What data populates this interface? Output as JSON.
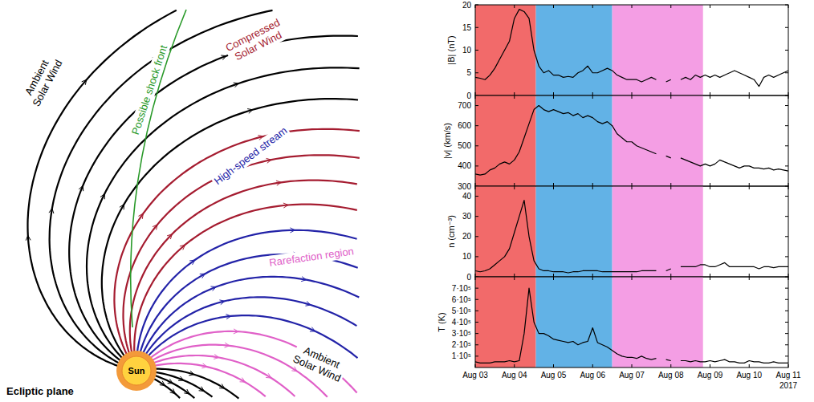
{
  "diagram": {
    "title": "Ecliptic plane",
    "sun": "Sun",
    "labels": [
      {
        "text": "Ambient Solar Wind",
        "color": "#000000"
      },
      {
        "text": "Possible shock front",
        "color": "#2a9a2a"
      },
      {
        "text": "Compressed Solar Wind",
        "color": "#a51c30"
      },
      {
        "text": "High-speed stream",
        "color": "#2323a8"
      },
      {
        "text": "Rarefaction region",
        "color": "#e060c8"
      },
      {
        "text": "Ambient Solar Wind",
        "color": "#000000"
      }
    ]
  },
  "chart_data": [
    {
      "type": "line",
      "ylabel": "|B| (nT)",
      "color": "#000000",
      "tick_labels": "y",
      "grid": false,
      "xlim": [
        3,
        11
      ],
      "xticks": [
        3,
        4,
        5,
        6,
        7,
        8,
        9,
        10,
        11
      ],
      "ylim": [
        0,
        20
      ],
      "yticks": [
        0,
        5,
        10,
        15,
        20
      ],
      "regions": [
        {
          "start": 3,
          "end": 4.55,
          "color": "#f26a6a"
        },
        {
          "start": 4.55,
          "end": 6.5,
          "color": "#62b2e6"
        },
        {
          "start": 6.5,
          "end": 8.82,
          "color": "#f49ee4"
        }
      ],
      "x": [
        3,
        3.125,
        3.25,
        3.375,
        3.5,
        3.625,
        3.75,
        3.875,
        4,
        4.125,
        4.25,
        4.375,
        4.5,
        4.625,
        4.75,
        4.875,
        5,
        5.125,
        5.25,
        5.375,
        5.5,
        5.625,
        5.75,
        5.875,
        6,
        6.125,
        6.25,
        6.375,
        6.5,
        6.625,
        6.75,
        6.875,
        7,
        7.125,
        7.25,
        7.375,
        7.5,
        7.625,
        7.75,
        7.875,
        8,
        8.125,
        8.25,
        8.375,
        8.5,
        8.625,
        8.75,
        8.875,
        9,
        9.125,
        9.25,
        9.375,
        9.5,
        9.625,
        9.75,
        9.875,
        10,
        10.125,
        10.25,
        10.375,
        10.5,
        10.625,
        10.75,
        10.875,
        11
      ],
      "values": [
        4,
        3.8,
        3.5,
        4.5,
        6,
        8,
        10,
        12,
        17,
        19,
        18.5,
        17,
        10,
        6.5,
        5,
        5.5,
        4.5,
        4.5,
        4,
        4.2,
        4,
        5,
        5.5,
        6.5,
        5,
        5,
        5.5,
        6,
        5.5,
        4.5,
        4,
        3.5,
        3.5,
        3.5,
        3,
        3.5,
        4,
        3.5,
        null,
        3,
        3.5,
        null,
        3.5,
        4,
        3.5,
        4.5,
        4,
        4.5,
        4,
        4.5,
        4,
        4.5,
        5,
        5.5,
        5,
        4.5,
        4,
        3.5,
        2,
        4,
        4.5,
        4,
        4.5,
        5,
        5.5
      ]
    },
    {
      "type": "line",
      "ylabel": "|v| (km/s)",
      "color": "#000000",
      "tick_labels": "y",
      "grid": false,
      "xlim": [
        3,
        11
      ],
      "xticks": [
        3,
        4,
        5,
        6,
        7,
        8,
        9,
        10,
        11
      ],
      "ylim": [
        300,
        750
      ],
      "yticks": [
        300,
        400,
        500,
        600,
        700
      ],
      "regions": [
        {
          "start": 3,
          "end": 4.55,
          "color": "#f26a6a"
        },
        {
          "start": 4.55,
          "end": 6.5,
          "color": "#62b2e6"
        },
        {
          "start": 6.5,
          "end": 8.82,
          "color": "#f49ee4"
        }
      ],
      "x": [
        3,
        3.125,
        3.25,
        3.375,
        3.5,
        3.625,
        3.75,
        3.875,
        4,
        4.125,
        4.25,
        4.375,
        4.5,
        4.625,
        4.75,
        4.875,
        5,
        5.125,
        5.25,
        5.375,
        5.5,
        5.625,
        5.75,
        5.875,
        6,
        6.125,
        6.25,
        6.375,
        6.5,
        6.625,
        6.75,
        6.875,
        7,
        7.125,
        7.25,
        7.375,
        7.5,
        7.625,
        7.75,
        7.875,
        8,
        8.125,
        8.25,
        8.375,
        8.5,
        8.625,
        8.75,
        8.875,
        9,
        9.125,
        9.25,
        9.375,
        9.5,
        9.625,
        9.75,
        9.875,
        10,
        10.125,
        10.25,
        10.375,
        10.5,
        10.625,
        10.75,
        10.875,
        11
      ],
      "values": [
        360,
        355,
        360,
        380,
        390,
        410,
        420,
        410,
        430,
        470,
        540,
        610,
        680,
        700,
        680,
        670,
        680,
        670,
        660,
        665,
        650,
        660,
        640,
        650,
        640,
        620,
        610,
        620,
        600,
        560,
        540,
        520,
        520,
        500,
        490,
        480,
        470,
        460,
        null,
        450,
        440,
        null,
        440,
        430,
        420,
        410,
        400,
        410,
        400,
        410,
        430,
        420,
        410,
        400,
        390,
        400,
        400,
        390,
        390,
        385,
        390,
        380,
        385,
        380,
        375
      ]
    },
    {
      "type": "line",
      "ylabel": "n (cm⁻³)",
      "color": "#000000",
      "tick_labels": "y",
      "grid": false,
      "xlim": [
        3,
        11
      ],
      "xticks": [
        3,
        4,
        5,
        6,
        7,
        8,
        9,
        10,
        11
      ],
      "ylim": [
        0,
        45
      ],
      "yticks": [
        0,
        10,
        20,
        30,
        40
      ],
      "regions": [
        {
          "start": 3,
          "end": 4.55,
          "color": "#f26a6a"
        },
        {
          "start": 4.55,
          "end": 6.5,
          "color": "#62b2e6"
        },
        {
          "start": 6.5,
          "end": 8.82,
          "color": "#f49ee4"
        }
      ],
      "x": [
        3,
        3.125,
        3.25,
        3.375,
        3.5,
        3.625,
        3.75,
        3.875,
        4,
        4.125,
        4.25,
        4.375,
        4.5,
        4.625,
        4.75,
        4.875,
        5,
        5.125,
        5.25,
        5.375,
        5.5,
        5.625,
        5.75,
        5.875,
        6,
        6.125,
        6.25,
        6.375,
        6.5,
        6.625,
        6.75,
        6.875,
        7,
        7.125,
        7.25,
        7.375,
        7.5,
        7.625,
        7.75,
        7.875,
        8,
        8.125,
        8.25,
        8.375,
        8.5,
        8.625,
        8.75,
        8.875,
        9,
        9.125,
        9.25,
        9.375,
        9.5,
        9.625,
        9.75,
        9.875,
        10,
        10.125,
        10.25,
        10.375,
        10.5,
        10.625,
        10.75,
        10.875,
        11
      ],
      "values": [
        3,
        2.5,
        3,
        4,
        6,
        8,
        10,
        14,
        22,
        30,
        38,
        20,
        8,
        4,
        3,
        3,
        2.5,
        2.5,
        2.5,
        2,
        2.5,
        2.5,
        3,
        3,
        3,
        3,
        2.5,
        2.5,
        2.5,
        2.5,
        2.5,
        2.5,
        2.5,
        2.5,
        3,
        3,
        3,
        3,
        null,
        3,
        4,
        null,
        5,
        5,
        5,
        5,
        6,
        6,
        5,
        5,
        6,
        7,
        5,
        5,
        5,
        5,
        5,
        5,
        4,
        5,
        5,
        4.5,
        5,
        5,
        5
      ]
    },
    {
      "type": "line",
      "ylabel": "T (K)",
      "xlabel": "2017",
      "color": "#000000",
      "grid": false,
      "xlim": [
        3,
        11
      ],
      "xticks": [
        {
          "value": 3,
          "label": "Aug 03"
        },
        {
          "value": 4,
          "label": "Aug 04"
        },
        {
          "value": 5,
          "label": "Aug 05"
        },
        {
          "value": 6,
          "label": "Aug 06"
        },
        {
          "value": 7,
          "label": "Aug 07"
        },
        {
          "value": 8,
          "label": "Aug 08"
        },
        {
          "value": 9,
          "label": "Aug 09"
        },
        {
          "value": 10,
          "label": "Aug 10"
        },
        {
          "value": 11,
          "label": "Aug 11"
        }
      ],
      "ylim": [
        0,
        800000
      ],
      "yticks": [
        {
          "value": 100000,
          "label": "1·10⁵"
        },
        {
          "value": 200000,
          "label": "2·10⁵"
        },
        {
          "value": 300000,
          "label": "3·10⁵"
        },
        {
          "value": 400000,
          "label": "4·10⁵"
        },
        {
          "value": 500000,
          "label": "5·10⁵"
        },
        {
          "value": 600000,
          "label": "6·10⁵"
        },
        {
          "value": 700000,
          "label": "7·10⁵"
        }
      ],
      "regions": [
        {
          "start": 3,
          "end": 4.55,
          "color": "#f26a6a"
        },
        {
          "start": 4.55,
          "end": 6.5,
          "color": "#62b2e6"
        },
        {
          "start": 6.5,
          "end": 8.82,
          "color": "#f49ee4"
        }
      ],
      "x": [
        3,
        3.125,
        3.25,
        3.375,
        3.5,
        3.625,
        3.75,
        3.875,
        4,
        4.125,
        4.25,
        4.375,
        4.5,
        4.625,
        4.75,
        4.875,
        5,
        5.125,
        5.25,
        5.375,
        5.5,
        5.625,
        5.75,
        5.875,
        6,
        6.125,
        6.25,
        6.375,
        6.5,
        6.625,
        6.75,
        6.875,
        7,
        7.125,
        7.25,
        7.375,
        7.5,
        7.625,
        7.75,
        7.875,
        8,
        8.125,
        8.25,
        8.375,
        8.5,
        8.625,
        8.75,
        8.875,
        9,
        9.125,
        9.25,
        9.375,
        9.5,
        9.625,
        9.75,
        9.875,
        10,
        10.125,
        10.25,
        10.375,
        10.5,
        10.625,
        10.75,
        10.875,
        11
      ],
      "values": [
        50000,
        40000,
        40000,
        40000,
        50000,
        50000,
        50000,
        60000,
        50000,
        60000,
        300000,
        700000,
        400000,
        300000,
        300000,
        280000,
        250000,
        240000,
        230000,
        220000,
        230000,
        200000,
        220000,
        230000,
        350000,
        220000,
        200000,
        180000,
        150000,
        120000,
        100000,
        90000,
        90000,
        80000,
        100000,
        80000,
        70000,
        80000,
        null,
        70000,
        60000,
        null,
        60000,
        60000,
        50000,
        60000,
        50000,
        50000,
        60000,
        50000,
        60000,
        70000,
        50000,
        50000,
        40000,
        40000,
        60000,
        50000,
        50000,
        40000,
        40000,
        50000,
        40000,
        40000,
        40000
      ]
    }
  ]
}
